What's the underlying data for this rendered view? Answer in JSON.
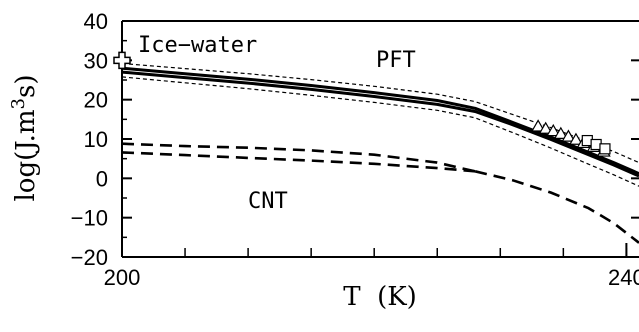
{
  "chart_data": {
    "type": "line",
    "xlabel": "T  (K)",
    "ylabel": "log(J.m",
    "ylabel_sup": "3",
    "ylabel_end": "s)",
    "xlim": [
      200,
      241
    ],
    "ylim": [
      -20,
      40
    ],
    "x_ticks": [
      200,
      240
    ],
    "y_ticks": [
      -20,
      -10,
      0,
      10,
      20,
      30,
      40
    ],
    "annotations": {
      "inset": "Ice−water",
      "pft": "PFT",
      "cnt": "CNT"
    },
    "series": [
      {
        "style": "solid",
        "x": [
          200,
          205,
          210,
          215,
          220,
          225,
          228,
          231,
          234,
          237,
          239,
          241
        ],
        "y": [
          28,
          26.6,
          25.2,
          23.6,
          21.8,
          19.8,
          17.8,
          14.2,
          10.5,
          6.6,
          4.0,
          1.2
        ]
      },
      {
        "style": "solid",
        "x": [
          200,
          205,
          210,
          215,
          220,
          225,
          228,
          231,
          234,
          237,
          239,
          241
        ],
        "y": [
          27,
          25.6,
          24.2,
          22.6,
          20.8,
          18.8,
          17.0,
          13.6,
          9.9,
          6.0,
          3.4,
          0.6
        ]
      },
      {
        "style": "dashed-thin",
        "x": [
          200,
          205,
          210,
          215,
          220,
          225,
          228,
          231,
          234,
          237,
          239,
          241
        ],
        "y": [
          29.2,
          27.9,
          26.6,
          25.1,
          23.4,
          21.4,
          19.5,
          16.2,
          12.9,
          9.3,
          6.8,
          4.0
        ]
      },
      {
        "style": "dashed-thin",
        "x": [
          200,
          205,
          210,
          215,
          220,
          225,
          228,
          231,
          234,
          237,
          239,
          241
        ],
        "y": [
          25.8,
          24.3,
          22.8,
          21.1,
          19.3,
          17.3,
          15.4,
          11.6,
          7.7,
          3.6,
          0.9,
          -2.0
        ]
      },
      {
        "style": "dashed-thick",
        "x": [
          200,
          205,
          210,
          215,
          220,
          225,
          227,
          228
        ],
        "y": [
          8.8,
          8.2,
          7.8,
          7.1,
          6.0,
          4.0,
          2.5,
          1.8
        ]
      },
      {
        "style": "dashed-thick",
        "x": [
          200,
          205,
          210,
          215,
          220,
          225,
          228
        ],
        "y": [
          6.6,
          5.9,
          5.2,
          4.5,
          3.7,
          2.6,
          1.8
        ]
      },
      {
        "style": "dashed-thick",
        "x": [
          228,
          231,
          234,
          237,
          239,
          241
        ],
        "y": [
          1.8,
          -0.5,
          -3.6,
          -7.6,
          -11.4,
          -16.4
        ]
      }
    ],
    "markers": {
      "cross": [
        {
          "x": 200,
          "y": 30
        }
      ],
      "triangles": [
        {
          "x": 233.0,
          "y": 13.2
        },
        {
          "x": 233.6,
          "y": 12.6
        },
        {
          "x": 234.2,
          "y": 12.0
        },
        {
          "x": 234.8,
          "y": 11.3
        },
        {
          "x": 235.4,
          "y": 10.6
        },
        {
          "x": 236.0,
          "y": 9.8
        },
        {
          "x": 236.6,
          "y": 9.0
        },
        {
          "x": 237.4,
          "y": 8.0
        },
        {
          "x": 238.2,
          "y": 6.8
        }
      ],
      "squares": [
        {
          "x": 236.9,
          "y": 9.6
        },
        {
          "x": 237.6,
          "y": 8.6
        },
        {
          "x": 238.3,
          "y": 7.5
        }
      ]
    }
  }
}
